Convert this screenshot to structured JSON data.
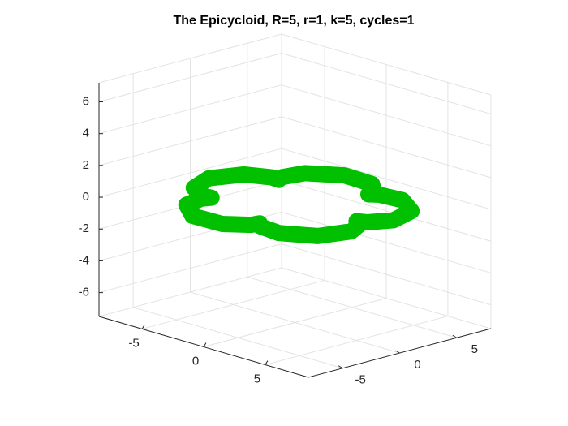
{
  "chart_data": {
    "type": "line3d",
    "title": "The Epicycloid, R=5, r=1, k=5, cycles=1",
    "x": [
      5,
      5.56,
      6.29,
      5.66,
      3.71,
      2,
      1.55,
      1.44,
      0.18,
      -2.16,
      -4,
      -4.32,
      -4.05,
      -4.67,
      -6.18,
      -7,
      -6.18,
      -4.67,
      -4.05,
      -4.32,
      -4,
      -2.16,
      0.18,
      1.44,
      1.55,
      2,
      3.71,
      5.66,
      6.29,
      5.56
    ],
    "y": [
      0,
      0.3,
      1.85,
      4.11,
      5.41,
      5.2,
      4.76,
      5.38,
      6.56,
      6.66,
      5.2,
      3.51,
      2.94,
      3.03,
      2.2,
      0,
      -2.2,
      -3.03,
      -2.94,
      -3.51,
      -5.2,
      -6.66,
      -6.56,
      -5.38,
      -4.76,
      -5.2,
      -5.41,
      -4.11,
      -1.85,
      -0.3
    ],
    "color": "#00c000",
    "xlim": [
      -8.5,
      8.5
    ],
    "ylim": [
      -8,
      8
    ],
    "zlim": [
      -7.5,
      7.2
    ],
    "xticks": [
      -5,
      0,
      5
    ],
    "yticks": [
      -5,
      0,
      5
    ],
    "zticks": [
      -6,
      -4,
      -2,
      0,
      2,
      4,
      6
    ],
    "grid": true
  }
}
